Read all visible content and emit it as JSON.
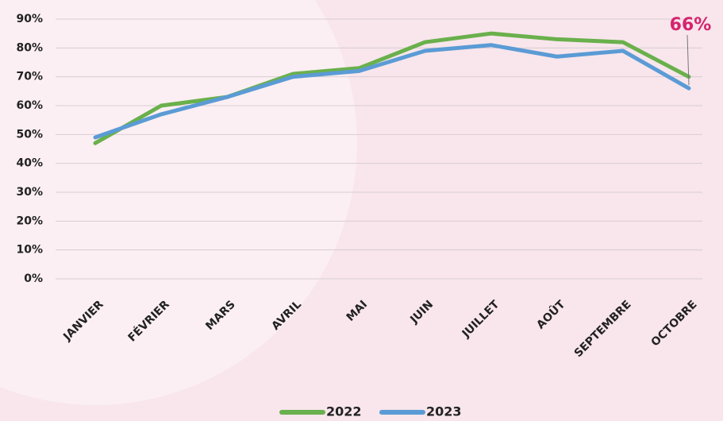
{
  "chart_data": {
    "type": "line",
    "categories": [
      "JANVIER",
      "FÉVRIER",
      "MARS",
      "AVRIL",
      "MAI",
      "JUIN",
      "JUILLET",
      "AOÛT",
      "SEPTEMBRE",
      "OCTOBRE"
    ],
    "series": [
      {
        "name": "2022",
        "color": "#6ab04c",
        "values": [
          47,
          60,
          63,
          71,
          73,
          82,
          85,
          83,
          82,
          70
        ]
      },
      {
        "name": "2023",
        "color": "#5b9bd5",
        "values": [
          49,
          57,
          63,
          70,
          72,
          79,
          81,
          77,
          79,
          66
        ]
      }
    ],
    "ylim": [
      0,
      90
    ],
    "yticks": [
      {
        "value": 0,
        "label": "0%"
      },
      {
        "value": 10,
        "label": "10%"
      },
      {
        "value": 20,
        "label": "20%"
      },
      {
        "value": 30,
        "label": "30%"
      },
      {
        "value": 40,
        "label": "40%"
      },
      {
        "value": 50,
        "label": "50%"
      },
      {
        "value": 60,
        "label": "60%"
      },
      {
        "value": 70,
        "label": "70%"
      },
      {
        "value": 80,
        "label": "80%"
      },
      {
        "value": 90,
        "label": "90%"
      }
    ],
    "grid": true,
    "annotation": "66%",
    "legend": "bottom"
  }
}
